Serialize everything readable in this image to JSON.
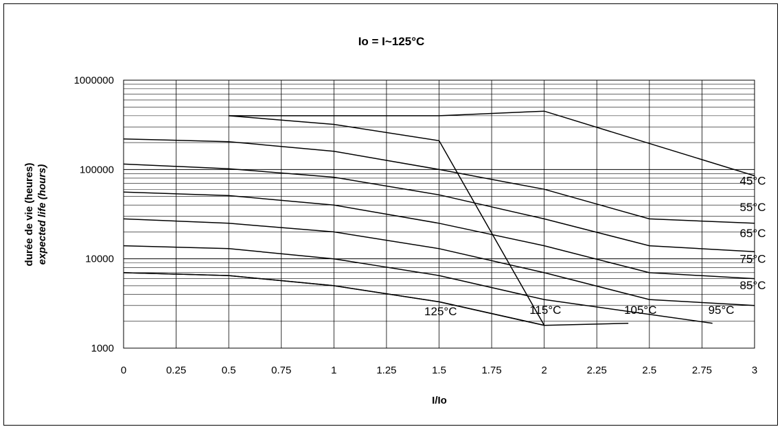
{
  "chart_data": {
    "type": "line",
    "title": "Io = I~125°C",
    "xlabel": "I/Io",
    "ylabel_line1": "durée de vie (heures)",
    "ylabel_line2": "expected life (hours)",
    "xlim": [
      0,
      3
    ],
    "ylim": [
      1000,
      1000000
    ],
    "y_scale": "log",
    "x_ticks": [
      "0",
      "0.25",
      "0.5",
      "0.75",
      "1",
      "1.25",
      "1.5",
      "1.75",
      "2",
      "2.25",
      "2.5",
      "2.75",
      "3"
    ],
    "y_ticks": [
      "1000",
      "10000",
      "100000",
      "1000000"
    ],
    "grid": true,
    "series": [
      {
        "name": "45°C",
        "label": "45°C",
        "points": [
          [
            0.5,
            400000
          ],
          [
            1.5,
            400000
          ],
          [
            2,
            450000
          ],
          [
            3,
            85000
          ]
        ]
      },
      {
        "name": "55°C",
        "label": "55°C",
        "points": [
          [
            0,
            220000
          ],
          [
            0.5,
            205000
          ],
          [
            1,
            160000
          ],
          [
            1.5,
            100000
          ],
          [
            2,
            60000
          ],
          [
            2.5,
            28000
          ],
          [
            3,
            25000
          ]
        ]
      },
      {
        "name": "65°C",
        "label": "65°C",
        "points": [
          [
            0,
            115000
          ],
          [
            0.5,
            102000
          ],
          [
            1,
            82000
          ],
          [
            1.5,
            52000
          ],
          [
            2,
            28000
          ],
          [
            2.5,
            14000
          ],
          [
            3,
            12000
          ]
        ]
      },
      {
        "name": "75°C",
        "label": "75°C",
        "points": [
          [
            0,
            56000
          ],
          [
            0.5,
            51000
          ],
          [
            1,
            40000
          ],
          [
            1.5,
            25000
          ],
          [
            2,
            14000
          ],
          [
            2.5,
            7000
          ],
          [
            3,
            6000
          ]
        ]
      },
      {
        "name": "85°C",
        "label": "85°C",
        "points": [
          [
            0,
            28000
          ],
          [
            0.5,
            25000
          ],
          [
            1,
            20000
          ],
          [
            1.5,
            13000
          ],
          [
            2,
            7000
          ],
          [
            2.5,
            3500
          ],
          [
            3,
            3000
          ]
        ]
      },
      {
        "name": "95°C",
        "label": "95°C",
        "points": [
          [
            0,
            14000
          ],
          [
            0.5,
            13000
          ],
          [
            1,
            10000
          ],
          [
            1.5,
            6500
          ],
          [
            2,
            3500
          ],
          [
            2.8,
            1900
          ]
        ]
      },
      {
        "name": "105°C",
        "label": "105°C",
        "points": [
          [
            0,
            7000
          ],
          [
            0.5,
            6500
          ],
          [
            1,
            5000
          ],
          [
            1.5,
            3300
          ],
          [
            2,
            1800
          ],
          [
            2.4,
            1900
          ]
        ]
      },
      {
        "name": "115°C",
        "label": "115°C",
        "points": [
          [
            0.5,
            400000
          ],
          [
            1,
            320000
          ],
          [
            1.5,
            210000
          ],
          [
            2,
            1800
          ]
        ]
      },
      {
        "name": "125°C",
        "label": "125°C",
        "points": [
          [
            0,
            7000
          ],
          [
            0.5,
            6500
          ],
          [
            1,
            5000
          ],
          [
            1.5,
            3300
          ],
          [
            2,
            1800
          ]
        ]
      }
    ],
    "curve_labels": [
      {
        "text": "45°C",
        "x": 2.93,
        "y": 75000
      },
      {
        "text": "55°C",
        "x": 2.93,
        "y": 38000
      },
      {
        "text": "65°C",
        "x": 2.93,
        "y": 19500
      },
      {
        "text": "75°C",
        "x": 2.93,
        "y": 10000
      },
      {
        "text": "85°C",
        "x": 2.93,
        "y": 5100
      },
      {
        "text": "95°C",
        "x": 2.78,
        "y": 2700
      },
      {
        "text": "105°C",
        "x": 2.38,
        "y": 2700
      },
      {
        "text": "115°C",
        "x": 1.93,
        "y": 2700
      },
      {
        "text": "125°C",
        "x": 1.43,
        "y": 2600
      }
    ]
  }
}
